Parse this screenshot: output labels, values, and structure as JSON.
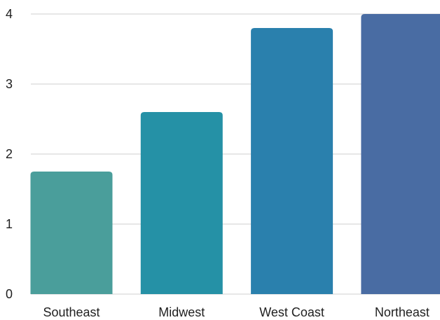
{
  "chart_data": {
    "type": "bar",
    "title": "",
    "xlabel": "",
    "ylabel": "",
    "categories": [
      "Southeast",
      "Midwest",
      "West Coast",
      "Northeast"
    ],
    "values": [
      1.75,
      2.6,
      3.8,
      4.0
    ],
    "ylim": [
      0,
      4
    ],
    "yticks": [
      "0",
      "1",
      "2",
      "3",
      "4"
    ],
    "grid": true,
    "legend": "none",
    "colors": [
      "#4a9e9b",
      "#2591a6",
      "#2a80ad",
      "#496ca3"
    ]
  }
}
